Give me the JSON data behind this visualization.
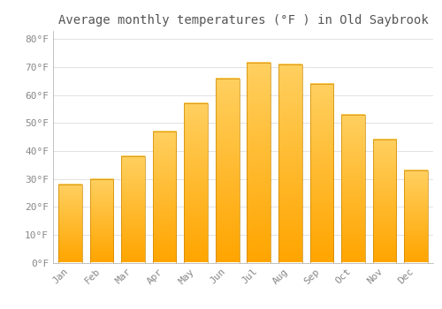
{
  "months": [
    "Jan",
    "Feb",
    "Mar",
    "Apr",
    "May",
    "Jun",
    "Jul",
    "Aug",
    "Sep",
    "Oct",
    "Nov",
    "Dec"
  ],
  "values": [
    28,
    30,
    38,
    47,
    57,
    66,
    71.5,
    71,
    64,
    53,
    44,
    33
  ],
  "bar_color_top": "#FFD060",
  "bar_color_bottom": "#FFA500",
  "bar_edge_color": "#CC8800",
  "title": "Average monthly temperatures (°F ) in Old Saybrook",
  "ylim": [
    0,
    83
  ],
  "ytick_step": 10,
  "background_color": "#FFFFFF",
  "grid_color": "#DDDDDD",
  "title_fontsize": 10,
  "tick_fontsize": 8,
  "tick_label_color": "#888888",
  "title_color": "#555555",
  "bar_width": 0.75
}
